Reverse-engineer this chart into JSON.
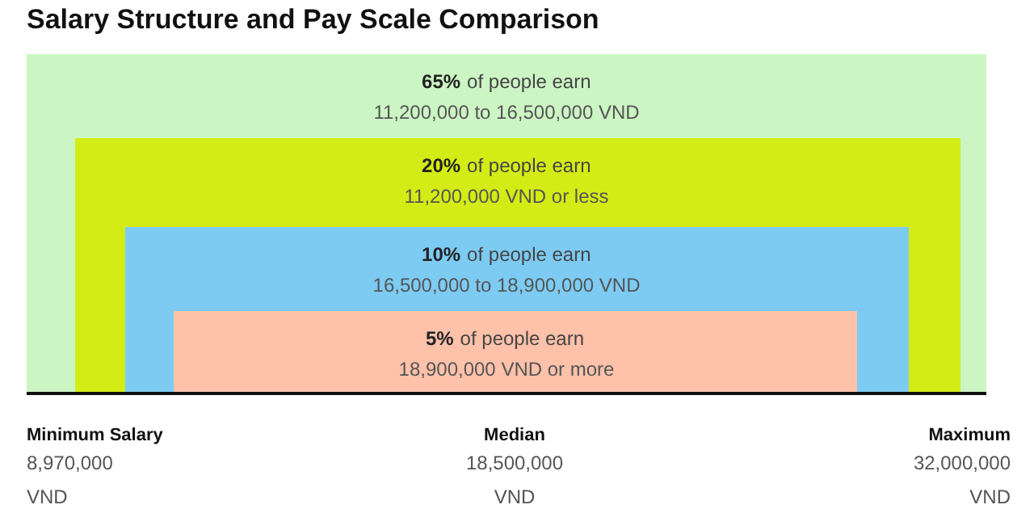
{
  "chart_data": {
    "type": "other",
    "title": "Salary Structure and Pay Scale Comparison",
    "categories": [
      "of people earn\n11,200,000 to 16,500,000 VND",
      "of people earn\n11,200,000 VND or less",
      "of people earn\n16,500,000 to 18,900,000 VND",
      "of people earn\n18,900,000 VND or more"
    ],
    "values": [
      65,
      20,
      10,
      5
    ],
    "value_labels": [
      "65%",
      "20%",
      "10%",
      "5%"
    ],
    "colors": [
      "#ccf5c4",
      "#d4ec15",
      "#7dcbf3",
      "#fec1aa"
    ],
    "annotations": [
      "Minimum Salary\n8,970,000\nVND",
      "Median\n18,500,000\nVND",
      "Maximum\n32,000,000\nVND"
    ]
  }
}
